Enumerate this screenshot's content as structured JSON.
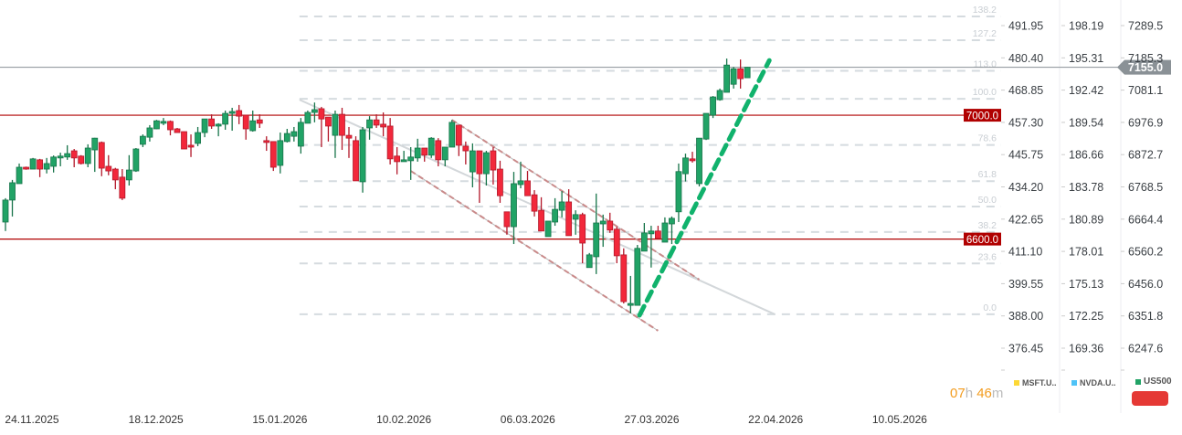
{
  "chart_data": {
    "type": "candlestick",
    "colors": {
      "up": "#21a366",
      "down": "#f2283b",
      "up_border": "#17744a",
      "down_border": "#b3182a"
    },
    "candles": [
      [
        6655,
        6732,
        6626,
        6726
      ],
      [
        6726,
        6791,
        6673,
        6782
      ],
      [
        6779,
        6844,
        6779,
        6832
      ],
      [
        6832,
        6834,
        6824,
        6826
      ],
      [
        6826,
        6862,
        6826,
        6859
      ],
      [
        6856,
        6859,
        6800,
        6826
      ],
      [
        6826,
        6862,
        6812,
        6844
      ],
      [
        6835,
        6870,
        6815,
        6865
      ],
      [
        6862,
        6879,
        6835,
        6868
      ],
      [
        6865,
        6903,
        6856,
        6876
      ],
      [
        6885,
        6891,
        6832,
        6862
      ],
      [
        6868,
        6871,
        6841,
        6844
      ],
      [
        6844,
        6906,
        6832,
        6894
      ],
      [
        6888,
        6927,
        6817,
        6926
      ],
      [
        6912,
        6915,
        6803,
        6829
      ],
      [
        6835,
        6871,
        6806,
        6820
      ],
      [
        6826,
        6830,
        6761,
        6791
      ],
      [
        6800,
        6826,
        6726,
        6732
      ],
      [
        6791,
        6871,
        6773,
        6823
      ],
      [
        6820,
        6894,
        6817,
        6891
      ],
      [
        6906,
        6938,
        6897,
        6932
      ],
      [
        6929,
        6968,
        6915,
        6959
      ],
      [
        6956,
        6985,
        6955,
        6982
      ],
      [
        6974,
        6991,
        6968,
        6980
      ],
      [
        6980,
        6983,
        6935,
        6953
      ],
      [
        6956,
        6959,
        6944,
        6944
      ],
      [
        6947,
        6947,
        6891,
        6891
      ],
      [
        6903,
        6938,
        6865,
        6897
      ],
      [
        6909,
        6962,
        6900,
        6944
      ],
      [
        6944,
        6988,
        6929,
        6988
      ],
      [
        6988,
        7003,
        6956,
        6965
      ],
      [
        6965,
        6974,
        6932,
        6971
      ],
      [
        6971,
        7015,
        6953,
        7006
      ],
      [
        7006,
        7024,
        6950,
        7012
      ],
      [
        7015,
        7033,
        6971,
        6997
      ],
      [
        7000,
        7000,
        6921,
        6956
      ],
      [
        6950,
        7015,
        6947,
        6982
      ],
      [
        6985,
        7003,
        6959,
        6974
      ],
      [
        6918,
        6932,
        6885,
        6912
      ],
      [
        6915,
        6915,
        6820,
        6832
      ],
      [
        6838,
        6944,
        6812,
        6918
      ],
      [
        6915,
        6956,
        6912,
        6941
      ],
      [
        6932,
        6962,
        6915,
        6947
      ],
      [
        6900,
        6991,
        6876,
        6977
      ],
      [
        6974,
        7015,
        6974,
        7009
      ],
      [
        7009,
        7041,
        6977,
        7018
      ],
      [
        7021,
        7027,
        6897,
        6988
      ],
      [
        6994,
        6994,
        6915,
        6965
      ],
      [
        6935,
        7015,
        6862,
        7003
      ],
      [
        7003,
        7024,
        6888,
        6935
      ],
      [
        6935,
        6962,
        6862,
        6926
      ],
      [
        6918,
        6932,
        6788,
        6788
      ],
      [
        6785,
        6962,
        6750,
        6953
      ],
      [
        6959,
        6997,
        6921,
        6985
      ],
      [
        6985,
        7003,
        6959,
        6968
      ],
      [
        6971,
        7009,
        6932,
        6962
      ],
      [
        6965,
        6991,
        6841,
        6859
      ],
      [
        6868,
        6897,
        6809,
        6850
      ],
      [
        6850,
        6885,
        6850,
        6856
      ],
      [
        6853,
        6897,
        6791,
        6865
      ],
      [
        6862,
        6924,
        6850,
        6894
      ],
      [
        6894,
        6894,
        6850,
        6871
      ],
      [
        6871,
        6929,
        6862,
        6926
      ],
      [
        6918,
        6926,
        6835,
        6856
      ],
      [
        6856,
        6897,
        6835,
        6897
      ],
      [
        6897,
        6985,
        6897,
        6977
      ],
      [
        6968,
        6968,
        6868,
        6903
      ],
      [
        6900,
        6915,
        6841,
        6885
      ],
      [
        6817,
        6909,
        6767,
        6885
      ],
      [
        6885,
        6885,
        6717,
        6811
      ],
      [
        6811,
        6885,
        6773,
        6879
      ],
      [
        6885,
        6897,
        6776,
        6823
      ],
      [
        6826,
        6853,
        6717,
        6740
      ],
      [
        6688,
        6688,
        6614,
        6640
      ],
      [
        6640,
        6817,
        6584,
        6779
      ],
      [
        6776,
        6850,
        6764,
        6788
      ],
      [
        6788,
        6820,
        6740,
        6740
      ],
      [
        6743,
        6758,
        6673,
        6690
      ],
      [
        6693,
        6735,
        6626,
        6626
      ],
      [
        6608,
        6658,
        6608,
        6658
      ],
      [
        6655,
        6732,
        6643,
        6696
      ],
      [
        6693,
        6755,
        6670,
        6720
      ],
      [
        6720,
        6761,
        6611,
        6611
      ],
      [
        6664,
        6693,
        6614,
        6679
      ],
      [
        6679,
        6685,
        6522,
        6587
      ],
      [
        6508,
        6555,
        6508,
        6549
      ],
      [
        6543,
        6747,
        6487,
        6652
      ],
      [
        6649,
        6679,
        6575,
        6658
      ],
      [
        6658,
        6685,
        6620,
        6629
      ],
      [
        6632,
        6640,
        6522,
        6546
      ],
      [
        6549,
        6570,
        6392,
        6398
      ],
      [
        6386,
        6481,
        6360,
        6392
      ],
      [
        6386,
        6581,
        6386,
        6570
      ],
      [
        6561,
        6652,
        6561,
        6620
      ],
      [
        6617,
        6643,
        6508,
        6626
      ],
      [
        6626,
        6643,
        6602,
        6602
      ],
      [
        6590,
        6670,
        6590,
        6652
      ],
      [
        6649,
        6673,
        6584,
        6667
      ],
      [
        6688,
        6844,
        6655,
        6818
      ],
      [
        6811,
        6876,
        6786,
        6862
      ],
      [
        6859,
        6882,
        6847,
        6853
      ],
      [
        6779,
        6926,
        6770,
        6926
      ],
      [
        6923,
        7006,
        6920,
        7006
      ],
      [
        7000,
        7062,
        6991,
        7059
      ],
      [
        7050,
        7086,
        7047,
        7080
      ],
      [
        7074,
        7183,
        7074,
        7162
      ],
      [
        7100,
        7156,
        7086,
        7150
      ],
      [
        7150,
        7180,
        7086,
        7118
      ],
      [
        7121,
        7156,
        7121,
        7155
      ]
    ],
    "x_tick_labels": [
      "24.11.2025",
      "18.12.2025",
      "15.01.2026",
      "10.02.2026",
      "06.03.2026",
      "27.03.2026",
      "22.04.2026",
      "10.05.2026"
    ],
    "y_axes": [
      {
        "name": "MSFT.U..",
        "color": "#fdd835",
        "ticks": [
          "491.95",
          "480.40",
          "468.85",
          "457.30",
          "445.75",
          "434.20",
          "422.65",
          "411.10",
          "399.55",
          "388.00",
          "376.45"
        ]
      },
      {
        "name": "NVDA.U..",
        "color": "#4fc3f7",
        "ticks": [
          "198.19",
          "195.31",
          "192.42",
          "189.54",
          "186.66",
          "183.78",
          "180.89",
          "178.01",
          "175.13",
          "172.25",
          "169.36"
        ]
      },
      {
        "name": "US500",
        "color": "#21a366",
        "ticks": [
          "7289.5",
          "7185.3",
          "7081.1",
          "6976.9",
          "6872.7",
          "6768.5",
          "6664.4",
          "6560.2",
          "6456.0",
          "6351.8",
          "6247.6"
        ]
      }
    ],
    "ylim": [
      6247.6,
      7289.5
    ],
    "current_price": {
      "value": 7155.0,
      "label": "7155.0",
      "color": "#8a9196"
    },
    "horizontal_lines": [
      {
        "value": 7000,
        "label": "7000.0",
        "color": "#b00000"
      },
      {
        "value": 6600,
        "label": "6600.0",
        "color": "#b00000"
      }
    ],
    "fibonacci": {
      "low": 6357,
      "high": 7053,
      "start_candle": 42,
      "levels": [
        {
          "ratio": 1.382,
          "label": "138.2"
        },
        {
          "ratio": 1.272,
          "label": "127.2"
        },
        {
          "ratio": 1.13,
          "label": "113.0"
        },
        {
          "ratio": 1.0,
          "label": "100.0"
        },
        {
          "ratio": 0.786,
          "label": "78.6"
        },
        {
          "ratio": 0.618,
          "label": "61.8"
        },
        {
          "ratio": 0.5,
          "label": "50.0"
        },
        {
          "ratio": 0.382,
          "label": "38.2"
        },
        {
          "ratio": 0.236,
          "label": "23.6"
        },
        {
          "ratio": 0.0,
          "label": "0.0"
        }
      ]
    },
    "trend_lines": [
      {
        "name": "regression-line",
        "from": [
          42.8,
          7050
        ],
        "to": [
          112.0,
          6357
        ],
        "color": "#d3d7da",
        "style": "solid"
      },
      {
        "name": "channel-upper",
        "from": [
          65.0,
          6985
        ],
        "to": [
          101.0,
          6469
        ],
        "color": "#c98a8a",
        "style": "dashed"
      },
      {
        "name": "channel-lower",
        "from": [
          59.0,
          6820
        ],
        "to": [
          95.0,
          6304
        ],
        "color": "#c98a8a",
        "style": "dashed"
      },
      {
        "name": "uptrend-line",
        "from": [
          92.3,
          6354
        ],
        "to": [
          111.2,
          7177
        ],
        "color": "#10b26c",
        "style": "bold-dashed"
      }
    ]
  },
  "timer": {
    "hours": "07",
    "h": "h",
    "minutes": "46",
    "m": "m"
  }
}
